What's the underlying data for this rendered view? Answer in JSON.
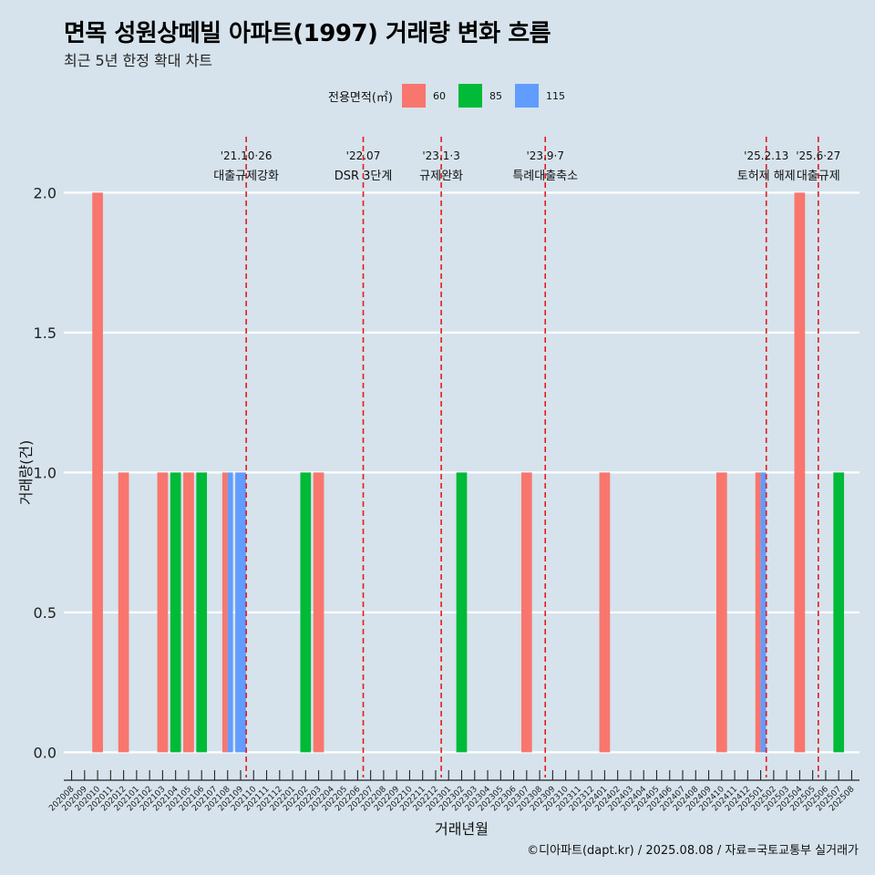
{
  "title": "면목 성원상떼빌 아파트(1997) 거래량 변화 흐름",
  "subtitle": "최근 5년 한정 확대 차트",
  "caption": "©디아파트(dapt.kr) / 2025.08.08 / 자료=국토교통부 실거래가",
  "colors": {
    "background": "#d6e3ec",
    "gridline": "#ffffff",
    "event_line": "#e41a1c"
  },
  "chart_data": {
    "type": "bar",
    "xlabel": "거래년월",
    "ylabel": "거래량(건)",
    "ylim": [
      -0.09,
      2.2
    ],
    "yticks": [
      0.0,
      0.5,
      1.0,
      1.5,
      2.0
    ],
    "ytick_labels": [
      "0.0",
      "0.5",
      "1.0",
      "1.5",
      "2.0"
    ],
    "grid": true,
    "legend": {
      "position": "top",
      "title": "전용면적(㎡)"
    },
    "categories": [
      "202008",
      "202009",
      "202010",
      "202011",
      "202012",
      "202101",
      "202102",
      "202103",
      "202104",
      "202105",
      "202106",
      "202107",
      "202108",
      "202109",
      "202110",
      "202111",
      "202112",
      "202201",
      "202202",
      "202203",
      "202204",
      "202205",
      "202206",
      "202207",
      "202208",
      "202209",
      "202210",
      "202211",
      "202212",
      "202301",
      "202302",
      "202303",
      "202304",
      "202305",
      "202306",
      "202307",
      "202308",
      "202309",
      "202310",
      "202311",
      "202312",
      "202401",
      "202402",
      "202403",
      "202404",
      "202405",
      "202406",
      "202407",
      "202408",
      "202409",
      "202410",
      "202411",
      "202412",
      "202501",
      "202502",
      "202503",
      "202504",
      "202505",
      "202506",
      "202507",
      "202508"
    ],
    "series": [
      {
        "name": "60",
        "color": "#f8766d",
        "points": [
          [
            "202010",
            2
          ],
          [
            "202012",
            1
          ],
          [
            "202103",
            1
          ],
          [
            "202105",
            1
          ],
          [
            "202108",
            1
          ],
          [
            "202203",
            1
          ],
          [
            "202307",
            1
          ],
          [
            "202401",
            1
          ],
          [
            "202410",
            1
          ],
          [
            "202501",
            1
          ],
          [
            "202504",
            2
          ]
        ]
      },
      {
        "name": "85",
        "color": "#00ba38",
        "points": [
          [
            "202104",
            1
          ],
          [
            "202106",
            1
          ],
          [
            "202202",
            1
          ],
          [
            "202302",
            1
          ],
          [
            "202507",
            1
          ]
        ]
      },
      {
        "name": "115",
        "color": "#619cff",
        "points": [
          [
            "202108",
            1
          ],
          [
            "202109",
            1
          ],
          [
            "202501",
            1
          ]
        ]
      }
    ],
    "events": [
      {
        "month": "202110",
        "date": "'21.10·26",
        "label": "대출규제강화"
      },
      {
        "month": "202207",
        "date": "'22.07",
        "label": "DSR 3단계"
      },
      {
        "month": "202301",
        "date": "'23.1·3",
        "label": "규제완화"
      },
      {
        "month": "202309",
        "date": "'23.9·7",
        "label": "특례대출축소"
      },
      {
        "month": "202502",
        "date": "'25.2.13",
        "label": "토허제 해제"
      },
      {
        "month": "202506",
        "date": "'25.6·27",
        "label": "대출규제"
      }
    ]
  }
}
